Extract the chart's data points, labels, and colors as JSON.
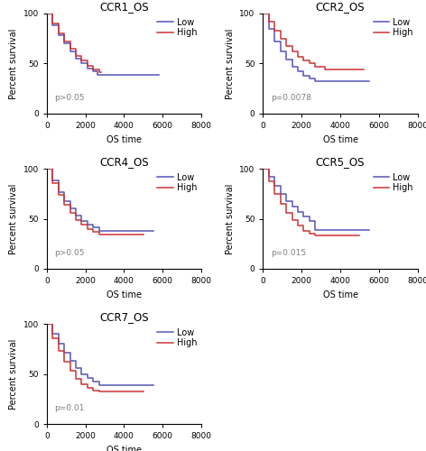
{
  "panels": [
    {
      "title": "CCR1_OS",
      "pvalue": "p>0.05",
      "low_x": [
        0,
        300,
        600,
        900,
        1200,
        1500,
        1800,
        2100,
        2400,
        2600,
        5800
      ],
      "low_y": [
        100,
        88,
        78,
        70,
        62,
        55,
        50,
        45,
        42,
        39,
        39
      ],
      "high_x": [
        0,
        300,
        600,
        900,
        1200,
        1500,
        1800,
        2100,
        2400,
        2700,
        2800
      ],
      "high_y": [
        100,
        90,
        80,
        72,
        65,
        58,
        53,
        48,
        44,
        41,
        41
      ]
    },
    {
      "title": "CCR2_OS",
      "pvalue": "p=0.0078",
      "low_x": [
        0,
        300,
        600,
        900,
        1200,
        1500,
        1800,
        2100,
        2400,
        2700,
        5500
      ],
      "low_y": [
        100,
        85,
        72,
        62,
        54,
        47,
        42,
        38,
        35,
        32,
        32
      ],
      "high_x": [
        0,
        300,
        600,
        900,
        1200,
        1500,
        1800,
        2100,
        2400,
        2700,
        3200,
        5200
      ],
      "high_y": [
        100,
        92,
        83,
        75,
        68,
        62,
        57,
        53,
        50,
        47,
        44,
        44
      ]
    },
    {
      "title": "CCR4_OS",
      "pvalue": "p>0.05",
      "low_x": [
        0,
        300,
        600,
        900,
        1200,
        1500,
        1800,
        2100,
        2400,
        2700,
        5500
      ],
      "low_y": [
        100,
        88,
        77,
        68,
        60,
        53,
        48,
        44,
        41,
        38,
        38
      ],
      "high_x": [
        0,
        300,
        600,
        900,
        1200,
        1500,
        1800,
        2100,
        2400,
        2700,
        5000
      ],
      "high_y": [
        100,
        86,
        74,
        64,
        56,
        49,
        44,
        40,
        37,
        34,
        34
      ]
    },
    {
      "title": "CCR5_OS",
      "pvalue": "p=0.015",
      "low_x": [
        0,
        300,
        600,
        900,
        1200,
        1500,
        1800,
        2100,
        2400,
        2700,
        5500
      ],
      "low_y": [
        100,
        92,
        83,
        75,
        68,
        62,
        57,
        52,
        48,
        39,
        39
      ],
      "high_x": [
        0,
        300,
        600,
        900,
        1200,
        1500,
        1800,
        2100,
        2400,
        2700,
        5000
      ],
      "high_y": [
        100,
        87,
        75,
        65,
        56,
        49,
        43,
        38,
        35,
        33,
        33
      ]
    },
    {
      "title": "CCR7_OS",
      "pvalue": "p=0.01",
      "low_x": [
        0,
        300,
        600,
        900,
        1200,
        1500,
        1800,
        2100,
        2400,
        2700,
        5500
      ],
      "low_y": [
        100,
        90,
        80,
        71,
        63,
        56,
        50,
        46,
        42,
        39,
        39
      ],
      "high_x": [
        0,
        300,
        600,
        900,
        1200,
        1500,
        1800,
        2100,
        2400,
        2700,
        5000
      ],
      "high_y": [
        100,
        86,
        73,
        62,
        53,
        45,
        40,
        36,
        33,
        32,
        32
      ]
    }
  ],
  "low_color": "#5555bb",
  "high_color": "#cc3333",
  "xlim": [
    0,
    8000
  ],
  "ylim": [
    0,
    100
  ],
  "xticks": [
    0,
    2000,
    4000,
    6000,
    8000
  ],
  "yticks": [
    0,
    50,
    100
  ],
  "xlabel": "OS time",
  "ylabel": "Percent survival",
  "title_fontsize": 8.5,
  "label_fontsize": 7,
  "tick_fontsize": 6.5,
  "pval_fontsize": 6.5,
  "legend_fontsize": 7,
  "background_color": "#ffffff"
}
